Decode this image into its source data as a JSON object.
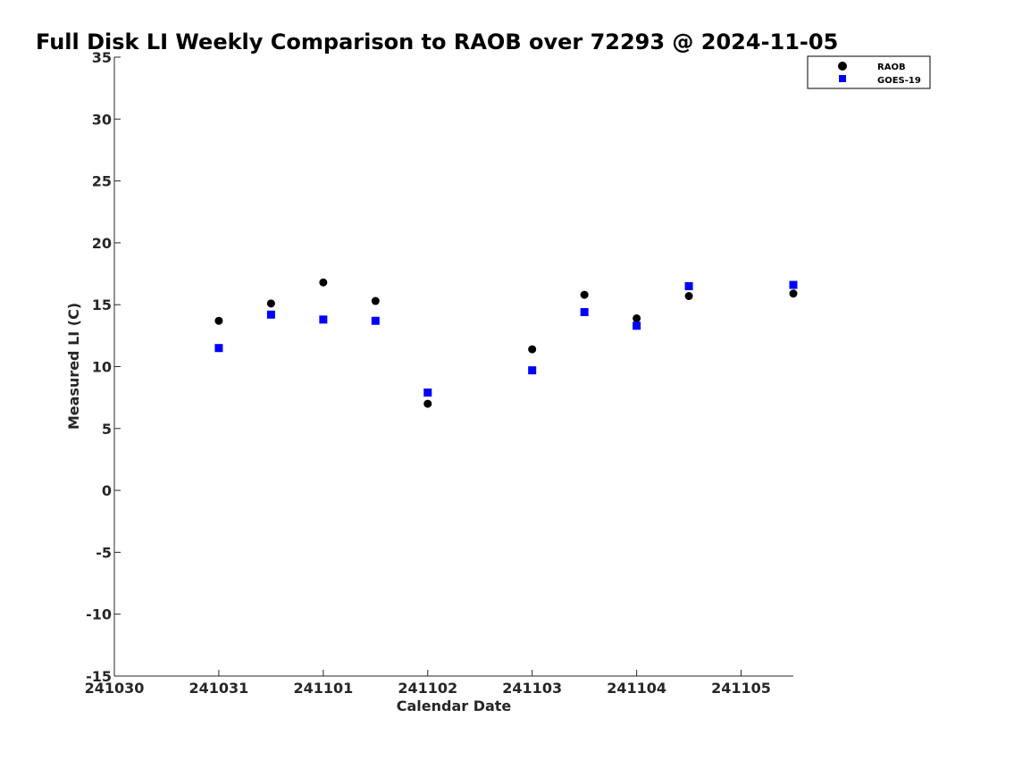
{
  "chart_data": {
    "type": "scatter",
    "title": "Full Disk LI Weekly Comparison to RAOB over 72293 @ 2024-11-05",
    "xlabel": "Calendar Date",
    "ylabel": "Measured LI (C)",
    "xlim": [
      0,
      6.5
    ],
    "ylim": [
      -15,
      35
    ],
    "x_ticks": [
      {
        "value": 0,
        "label": "241030"
      },
      {
        "value": 1,
        "label": "241031"
      },
      {
        "value": 2,
        "label": "241101"
      },
      {
        "value": 3,
        "label": "241102"
      },
      {
        "value": 4,
        "label": "241103"
      },
      {
        "value": 5,
        "label": "241104"
      },
      {
        "value": 6,
        "label": "241105"
      }
    ],
    "y_ticks": [
      {
        "value": 35,
        "label": "35"
      },
      {
        "value": 30,
        "label": "30"
      },
      {
        "value": 25,
        "label": "25"
      },
      {
        "value": 20,
        "label": "20"
      },
      {
        "value": 15,
        "label": "15"
      },
      {
        "value": 10,
        "label": "10"
      },
      {
        "value": 5,
        "label": "5"
      },
      {
        "value": 0,
        "label": "0"
      },
      {
        "value": -5,
        "label": "-5"
      },
      {
        "value": -10,
        "label": "-10"
      },
      {
        "value": -15,
        "label": "-15"
      }
    ],
    "grid": false,
    "legend_position": "top-right",
    "series": [
      {
        "name": "RAOB",
        "marker": "circle",
        "color": "#000000",
        "x": [
          1,
          1.5,
          2,
          2.5,
          3,
          4,
          4.5,
          5,
          5.5,
          6.5
        ],
        "y": [
          13.7,
          15.1,
          16.8,
          15.3,
          7.0,
          11.4,
          15.8,
          13.9,
          15.7,
          15.9
        ]
      },
      {
        "name": "GOES-19",
        "marker": "square",
        "color": "#0000ff",
        "x": [
          1,
          1.5,
          2,
          2.5,
          3,
          4,
          4.5,
          5,
          5.5,
          6.5
        ],
        "y": [
          11.5,
          14.2,
          13.8,
          13.7,
          7.9,
          9.7,
          14.4,
          13.3,
          16.5,
          16.6
        ]
      }
    ]
  }
}
